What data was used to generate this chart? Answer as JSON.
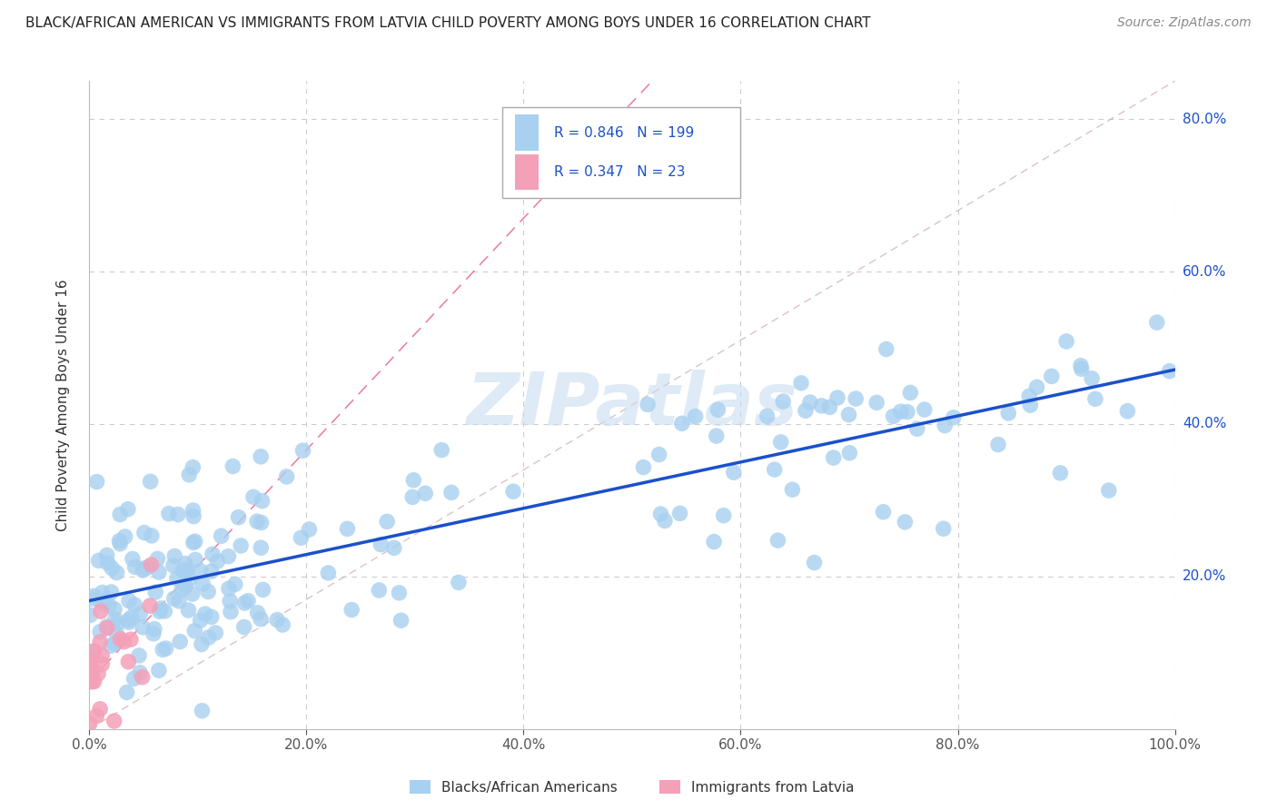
{
  "title": "BLACK/AFRICAN AMERICAN VS IMMIGRANTS FROM LATVIA CHILD POVERTY AMONG BOYS UNDER 16 CORRELATION CHART",
  "source": "Source: ZipAtlas.com",
  "ylabel": "Child Poverty Among Boys Under 16",
  "watermark": "ZIPatlas",
  "legend_blue_r": "0.846",
  "legend_blue_n": "199",
  "legend_pink_r": "0.347",
  "legend_pink_n": "23",
  "legend_label_blue": "Blacks/African Americans",
  "legend_label_pink": "Immigrants from Latvia",
  "xlim": [
    0,
    1.0
  ],
  "ylim": [
    0,
    0.85
  ],
  "blue_color": "#A8D0F0",
  "pink_color": "#F4A0B8",
  "blue_line_color": "#1A50CC",
  "pink_line_color": "#DD3366",
  "background_color": "#FFFFFF",
  "grid_color": "#CCCCCC"
}
